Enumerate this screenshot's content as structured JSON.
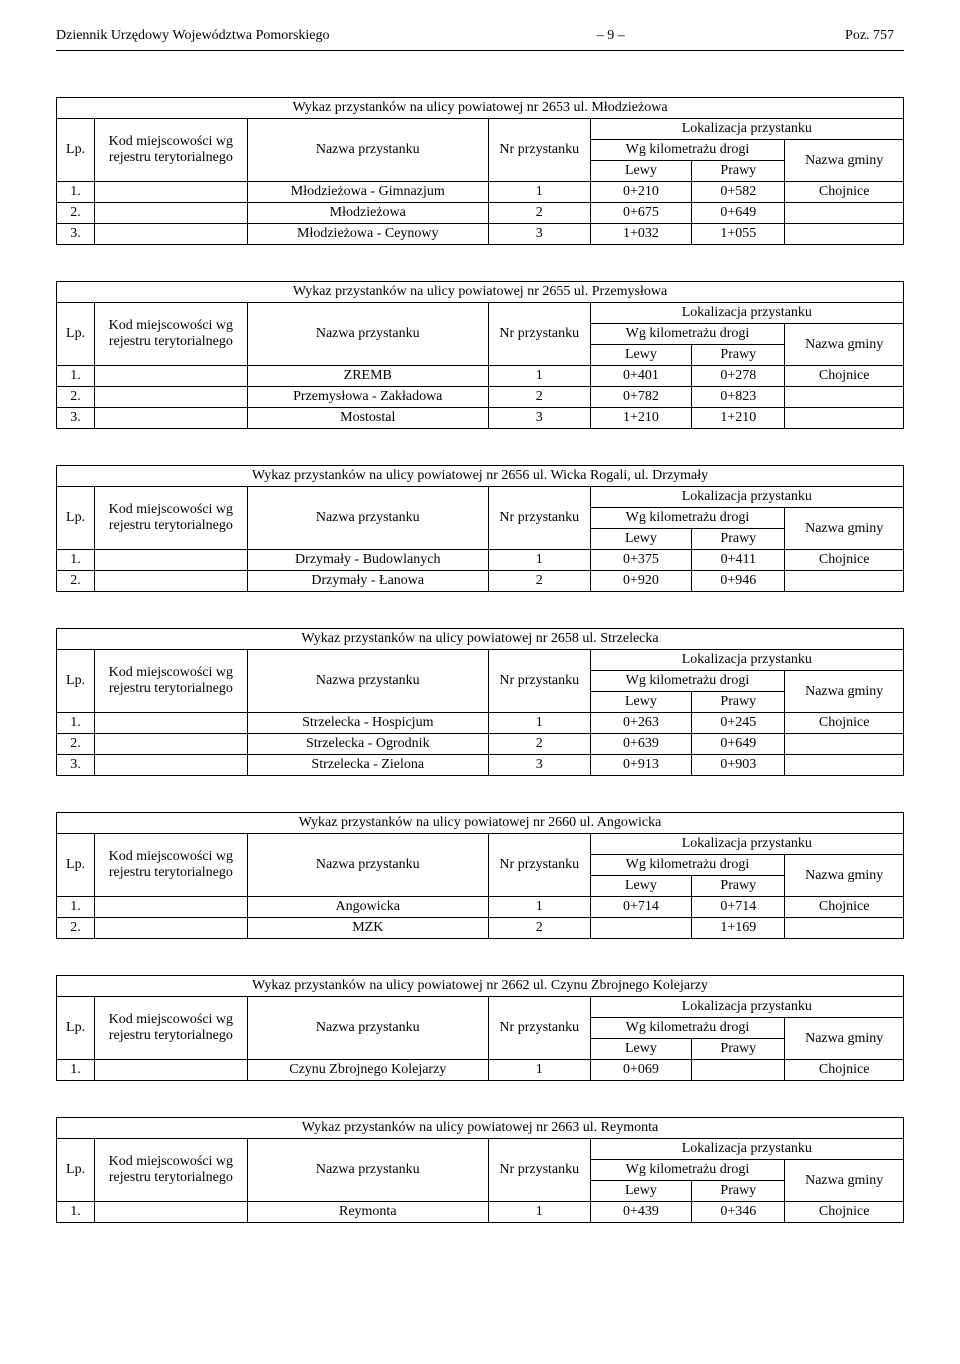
{
  "header": {
    "left": "Dziennik Urzędowy Województwa Pomorskiego",
    "center": "– 9 –",
    "right": "Poz. 757"
  },
  "common": {
    "lp": "Lp.",
    "kod": "Kod miejscowości wg rejestru terytorialnego",
    "nazwa_przystanku": "Nazwa przystanku",
    "nr_przystanku": "Nr przystanku",
    "lokalizacja": "Lokalizacja przystanku",
    "wg_km": "Wg kilometrażu drogi",
    "lewy": "Lewy",
    "prawy": "Prawy",
    "nazwa_gminy": "Nazwa gminy"
  },
  "tables": [
    {
      "title": "Wykaz przystanków na ulicy powiatowej nr 2653 ul. Młodzieżowa",
      "rows": [
        {
          "lp": "1.",
          "kod": "",
          "name": "Młodzieżowa - Gimnazjum",
          "nr": "1",
          "lewy": "0+210",
          "prawy": "0+582",
          "gmina": "Chojnice"
        },
        {
          "lp": "2.",
          "kod": "",
          "name": "Młodzieżowa",
          "nr": "2",
          "lewy": "0+675",
          "prawy": "0+649",
          "gmina": ""
        },
        {
          "lp": "3.",
          "kod": "",
          "name": "Młodzieżowa - Ceynowy",
          "nr": "3",
          "lewy": "1+032",
          "prawy": "1+055",
          "gmina": ""
        }
      ]
    },
    {
      "title": "Wykaz przystanków na ulicy powiatowej nr 2655 ul. Przemysłowa",
      "rows": [
        {
          "lp": "1.",
          "kod": "",
          "name": "ZREMB",
          "nr": "1",
          "lewy": "0+401",
          "prawy": "0+278",
          "gmina": "Chojnice"
        },
        {
          "lp": "2.",
          "kod": "",
          "name": "Przemysłowa - Zakładowa",
          "nr": "2",
          "lewy": "0+782",
          "prawy": "0+823",
          "gmina": ""
        },
        {
          "lp": "3.",
          "kod": "",
          "name": "Mostostal",
          "nr": "3",
          "lewy": "1+210",
          "prawy": "1+210",
          "gmina": ""
        }
      ]
    },
    {
      "title": "Wykaz przystanków na ulicy powiatowej nr 2656 ul. Wicka Rogali, ul. Drzymały",
      "rows": [
        {
          "lp": "1.",
          "kod": "",
          "name": "Drzymały - Budowlanych",
          "nr": "1",
          "lewy": "0+375",
          "prawy": "0+411",
          "gmina": "Chojnice"
        },
        {
          "lp": "2.",
          "kod": "",
          "name": "Drzymały - Łanowa",
          "nr": "2",
          "lewy": "0+920",
          "prawy": "0+946",
          "gmina": ""
        }
      ]
    },
    {
      "title": "Wykaz przystanków na ulicy powiatowej nr 2658 ul. Strzelecka",
      "rows": [
        {
          "lp": "1.",
          "kod": "",
          "name": "Strzelecka - Hospicjum",
          "nr": "1",
          "lewy": "0+263",
          "prawy": "0+245",
          "gmina": "Chojnice"
        },
        {
          "lp": "2.",
          "kod": "",
          "name": "Strzelecka - Ogrodnik",
          "nr": "2",
          "lewy": "0+639",
          "prawy": "0+649",
          "gmina": ""
        },
        {
          "lp": "3.",
          "kod": "",
          "name": "Strzelecka - Zielona",
          "nr": "3",
          "lewy": "0+913",
          "prawy": "0+903",
          "gmina": ""
        }
      ]
    },
    {
      "title": "Wykaz przystanków na ulicy powiatowej nr 2660 ul. Angowicka",
      "rows": [
        {
          "lp": "1.",
          "kod": "",
          "name": "Angowicka",
          "nr": "1",
          "lewy": "0+714",
          "prawy": "0+714",
          "gmina": "Chojnice"
        },
        {
          "lp": "2.",
          "kod": "",
          "name": "MZK",
          "nr": "2",
          "lewy": "",
          "prawy": "1+169",
          "gmina": ""
        }
      ]
    },
    {
      "title": "Wykaz przystanków na ulicy powiatowej nr 2662 ul. Czynu Zbrojnego Kolejarzy",
      "rows": [
        {
          "lp": "1.",
          "kod": "",
          "name": "Czynu Zbrojnego Kolejarzy",
          "nr": "1",
          "lewy": "0+069",
          "prawy": "",
          "gmina": "Chojnice"
        }
      ]
    },
    {
      "title": "Wykaz przystanków na ulicy powiatowej nr 2663 ul. Reymonta",
      "rows": [
        {
          "lp": "1.",
          "kod": "",
          "name": "Reymonta",
          "nr": "1",
          "lewy": "0+439",
          "prawy": "0+346",
          "gmina": "Chojnice"
        }
      ]
    }
  ]
}
